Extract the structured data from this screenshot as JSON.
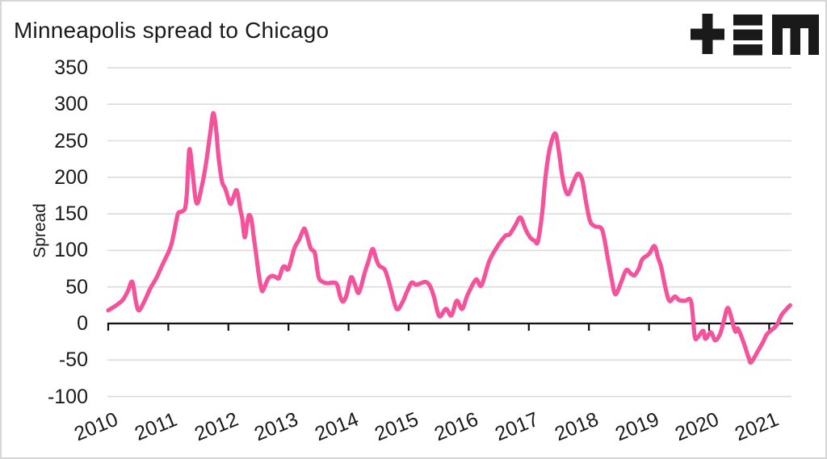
{
  "title": "Minneapolis spread to Chicago",
  "logo": {
    "name": "tem-logo",
    "glyphs": [
      "plus",
      "triple-bar",
      "m"
    ],
    "color": "#1a1a1a"
  },
  "colors": {
    "line": "#F4539B",
    "grid": "#DBDBDB",
    "axis": "#121212",
    "text": "#1A1A1A",
    "border": "#D6D6D6",
    "background": "#FFFFFF"
  },
  "chart_data": {
    "type": "line",
    "title": "Minneapolis spread to Chicago",
    "xlabel": "",
    "ylabel": "Spread",
    "ylim": [
      -100,
      350
    ],
    "xlim": [
      2010,
      2021.45
    ],
    "y_ticks": [
      350,
      300,
      250,
      200,
      150,
      100,
      50,
      0,
      -50,
      -100
    ],
    "x_ticks": [
      2010,
      2011,
      2012,
      2013,
      2014,
      2015,
      2016,
      2017,
      2018,
      2019,
      2020,
      2021
    ],
    "grid": "horizontal-gray-lines, black zero axis with downward year ticks",
    "legend": "none",
    "series": [
      {
        "name": "Minneapolis spread to Chicago",
        "color": "#F4539B",
        "x": [
          2010.0,
          2010.08,
          2010.17,
          2010.25,
          2010.33,
          2010.4,
          2010.46,
          2010.51,
          2010.6,
          2010.7,
          2010.8,
          2010.9,
          2011.0,
          2011.05,
          2011.1,
          2011.16,
          2011.22,
          2011.28,
          2011.31,
          2011.35,
          2011.4,
          2011.45,
          2011.49,
          2011.55,
          2011.6,
          2011.65,
          2011.7,
          2011.75,
          2011.8,
          2011.83,
          2011.87,
          2011.9,
          2011.95,
          2012.03,
          2012.08,
          2012.14,
          2012.2,
          2012.23,
          2012.27,
          2012.31,
          2012.34,
          2012.38,
          2012.42,
          2012.46,
          2012.5,
          2012.55,
          2012.58,
          2012.66,
          2012.72,
          2012.78,
          2012.84,
          2012.9,
          2012.94,
          2013.0,
          2013.1,
          2013.18,
          2013.24,
          2013.28,
          2013.37,
          2013.44,
          2013.5,
          2013.57,
          2013.65,
          2013.75,
          2013.81,
          2013.86,
          2013.91,
          2013.97,
          2014.04,
          2014.1,
          2014.17,
          2014.27,
          2014.33,
          2014.4,
          2014.46,
          2014.51,
          2014.6,
          2014.66,
          2014.71,
          2014.8,
          2014.89,
          2014.98,
          2015.05,
          2015.12,
          2015.2,
          2015.28,
          2015.35,
          2015.42,
          2015.51,
          2015.62,
          2015.71,
          2015.8,
          2015.89,
          2015.98,
          2016.12,
          2016.21,
          2016.34,
          2016.48,
          2016.61,
          2016.68,
          2016.78,
          2016.86,
          2016.95,
          2017.03,
          2017.1,
          2017.15,
          2017.22,
          2017.28,
          2017.35,
          2017.44,
          2017.5,
          2017.55,
          2017.6,
          2017.66,
          2017.75,
          2017.82,
          2017.89,
          2017.95,
          2018.02,
          2018.1,
          2018.22,
          2018.31,
          2018.38,
          2018.44,
          2018.53,
          2018.62,
          2018.7,
          2018.76,
          2018.83,
          2018.89,
          2019.0,
          2019.09,
          2019.15,
          2019.2,
          2019.27,
          2019.34,
          2019.43,
          2019.5,
          2019.6,
          2019.7,
          2019.76,
          2019.81,
          2019.9,
          2019.94,
          2020.03,
          2020.1,
          2020.18,
          2020.25,
          2020.32,
          2020.43,
          2020.48,
          2020.57,
          2020.66,
          2020.7,
          2020.81,
          2020.9,
          2020.97,
          2021.12,
          2021.21,
          2021.35
        ],
        "values": [
          18,
          22,
          27,
          33,
          45,
          57,
          30,
          18,
          30,
          48,
          62,
          80,
          97,
          108,
          126,
          150,
          153,
          158,
          180,
          238,
          210,
          172,
          165,
          185,
          205,
          232,
          262,
          288,
          262,
          232,
          206,
          192,
          184,
          164,
          172,
          182,
          155,
          144,
          118,
          136,
          148,
          143,
          120,
          96,
          70,
          47,
          46,
          61,
          65,
          64,
          62,
          76,
          78,
          75,
          103,
          115,
          127,
          128,
          103,
          96,
          64,
          57,
          55,
          56,
          53,
          37,
          30,
          40,
          63,
          55,
          42,
          70,
          85,
          102,
          88,
          79,
          74,
          60,
          45,
          20,
          28,
          45,
          56,
          53,
          55,
          57,
          52,
          37,
          10,
          20,
          11,
          31,
          20,
          39,
          60,
          52,
          85,
          106,
          120,
          122,
          135,
          145,
          128,
          117,
          113,
          112,
          150,
          202,
          240,
          260,
          235,
          205,
          185,
          177,
          195,
          205,
          196,
          167,
          140,
          133,
          128,
          91,
          60,
          40,
          55,
          73,
          68,
          66,
          75,
          88,
          95,
          106,
          90,
          78,
          50,
          31,
          37,
          32,
          31,
          30,
          -17,
          -19,
          -10,
          -21,
          -12,
          -23,
          -15,
          5,
          21,
          -10,
          -7,
          -25,
          -47,
          -53,
          -38,
          -25,
          -14,
          -3,
          12,
          25
        ]
      }
    ]
  }
}
